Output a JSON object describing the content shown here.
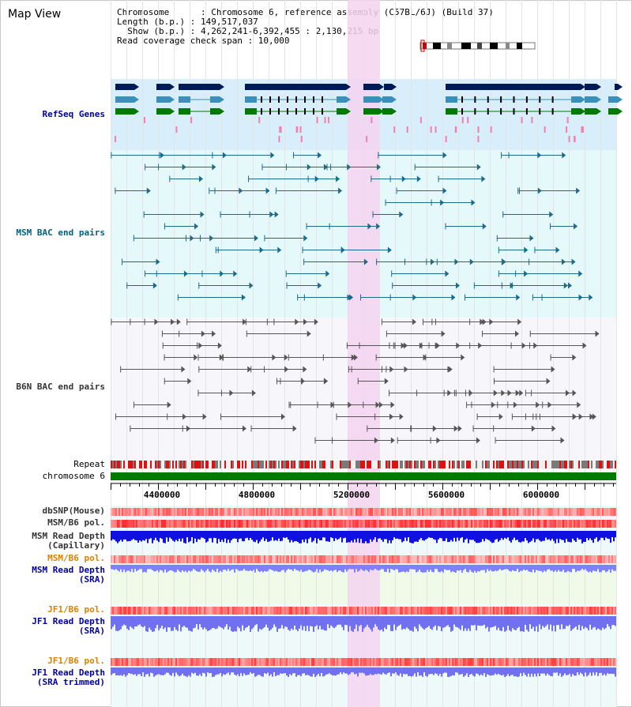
{
  "header": {
    "title": "Map View",
    "info_lines": [
      "Chromosome      : Chromosome 6, reference assembly (C57BL/6J) (Build 37)",
      "Length (b.p.) : 149,517,037",
      "  Show (b.p.) : 4,262,241-6,392,455 : 2,130,215 bp",
      "Read coverage check span : 10,000"
    ]
  },
  "tracks": {
    "refseq": "RefSeq Genes",
    "msm_bac": "MSM BAC end pairs",
    "b6n_bac": "B6N BAC end pairs",
    "repeat": "Repeat",
    "chromosome": "chromosome 6",
    "dbsnp": "dbSNP(Mouse)",
    "msm_pol": "MSM/B6 pol.",
    "msm_depth_cap_1": "MSM Read Depth",
    "msm_depth_cap_2": "(Capillary)",
    "msm_pol2": "MSM/B6 pol.",
    "msm_depth_sra_1": "MSM Read Depth",
    "msm_depth_sra_2": "(SRA)",
    "jf1_pol": "JF1/B6 pol.",
    "jf1_depth_sra_1": "JF1 Read Depth",
    "jf1_depth_sra_2": "(SRA)",
    "jf1_pol2": "JF1/B6 pol.",
    "jf1_depth_trim_1": "JF1 Read Depth",
    "jf1_depth_trim_2": "(SRA trimmed)"
  },
  "axis": {
    "ticks": [
      "4400000",
      "4800000",
      "5200000",
      "5600000",
      "6000000"
    ]
  },
  "colors": {
    "highlight": "#f5d4f0",
    "refseq_bg": "#d8eefa",
    "bac_bg": "#e6f9fa",
    "b6n_bg": "#f6f6fb",
    "chromosome": "#007a00",
    "refseq_label": "#0000a0",
    "msm_label": "#006080",
    "b6n_label": "#333333",
    "pol_label": "#e08000",
    "depth_label": "#0000a0"
  }
}
